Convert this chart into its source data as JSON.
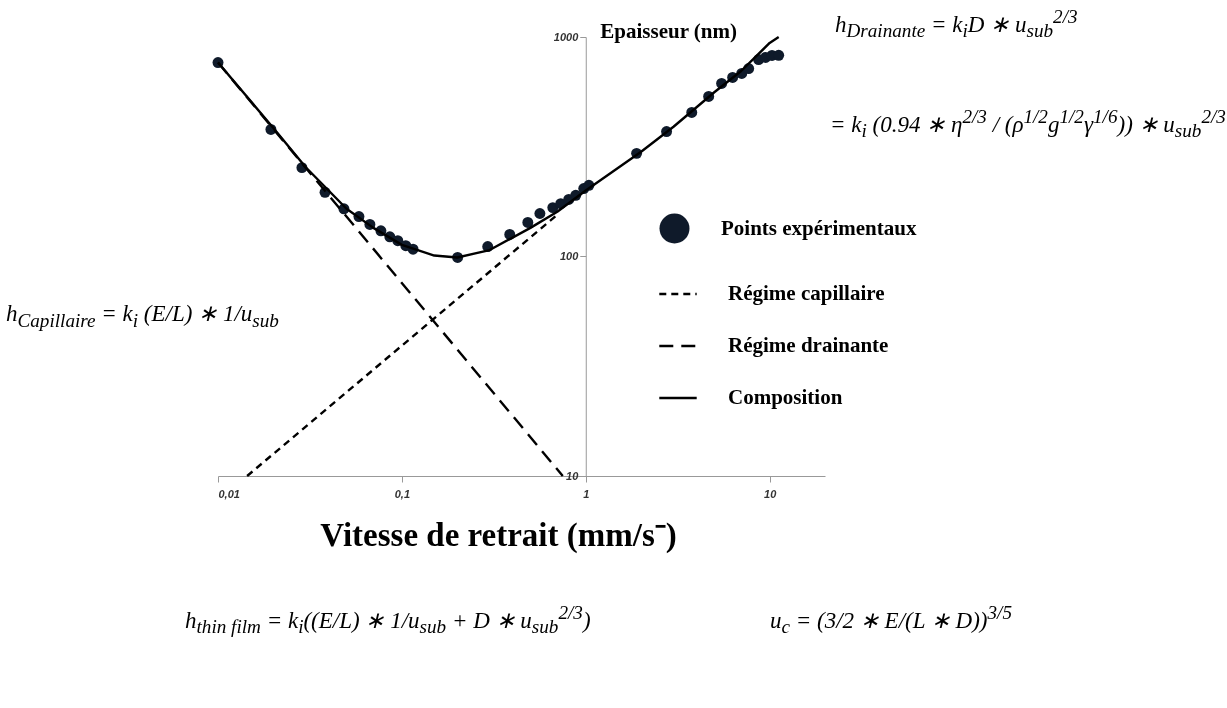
{
  "chart_data": {
    "type": "scatter",
    "xlabel": "Vitesse de retrait   (mm/s⁻)",
    "ylabel": "Epaisseur (nm)",
    "log": "xy",
    "xlim": [
      0.01,
      20
    ],
    "ylim": [
      10,
      1000
    ],
    "xticks": [
      {
        "value": 0.01,
        "label": "0,01"
      },
      {
        "value": 0.1,
        "label": "0,1"
      },
      1,
      10
    ],
    "yticks": [
      10,
      100,
      1000
    ],
    "legend": "right",
    "series": [
      {
        "name": "Points expérimentaux",
        "marker": "circle",
        "color": "#0f1a2a",
        "x": [
          0.01,
          0.0194,
          0.0286,
          0.0382,
          0.0484,
          0.0584,
          0.067,
          0.0769,
          0.086,
          0.095,
          0.105,
          0.115,
          0.201,
          0.293,
          0.386,
          0.484,
          0.563,
          0.662,
          0.731,
          0.808,
          0.882,
          0.975,
          1.04,
          1.89,
          2.75,
          3.77,
          4.66,
          5.48,
          6.29,
          7.05,
          7.69,
          8.71,
          9.51,
          10.3,
          11.2
        ],
        "values": [
          765,
          379,
          254,
          196,
          165,
          152,
          140,
          131,
          123,
          118,
          112,
          108,
          99,
          111,
          126,
          143,
          157,
          167,
          174,
          182,
          190,
          204,
          211,
          295,
          371,
          453,
          536,
          614,
          654,
          682,
          718,
          789,
          807,
          824,
          825
        ]
      },
      {
        "name": "Régime capillaire",
        "type": "line",
        "color": "#000000",
        "line_style": "dashed",
        "x": [
          0.0144,
          0.7
        ],
        "values": [
          10,
          155
        ]
      },
      {
        "name": "Régime drainante",
        "type": "line",
        "color": "#000000",
        "line_style": "dashed",
        "x": [
          0.01,
          0.75
        ],
        "values": [
          765,
          10
        ]
      },
      {
        "name": "Composition",
        "type": "line",
        "color": "#000000",
        "line_style": "solid",
        "x": [
          0.01,
          0.02,
          0.03,
          0.05,
          0.07,
          0.1,
          0.15,
          0.2,
          0.3,
          0.5,
          0.7,
          1,
          2,
          3,
          5,
          7,
          10,
          11.2
        ],
        "values": [
          765,
          385,
          255,
          165,
          135,
          113,
          101,
          99,
          107,
          135,
          160,
          200,
          300,
          390,
          560,
          700,
          940,
          1000
        ]
      }
    ],
    "annotations": [
      "h$_{Drainante}$ = k$_{i}$D ∗ u$_{sub}$$^{2/3}$",
      "= k$_{i}$ (0.94 ∗ η$^{2/3}$ / (ρ$^{1/2}$g$^{1/2}$γ$^{1/6}$)) ∗ u$_{sub}$$^{2/3}$",
      "h$_{Capillaire}$ = k$_{i}$ (E/L) ∗ 1/u$_{sub}$",
      "h$_{thin film}$ = k$_{i}$((E/L) ∗ 1/u$_{sub}$ + D ∗ u$_{sub}$$^{2/3}$)",
      "u$_{c}$ = (3/2 ∗ E/(L ∗ D))$^{3/5}$"
    ]
  }
}
